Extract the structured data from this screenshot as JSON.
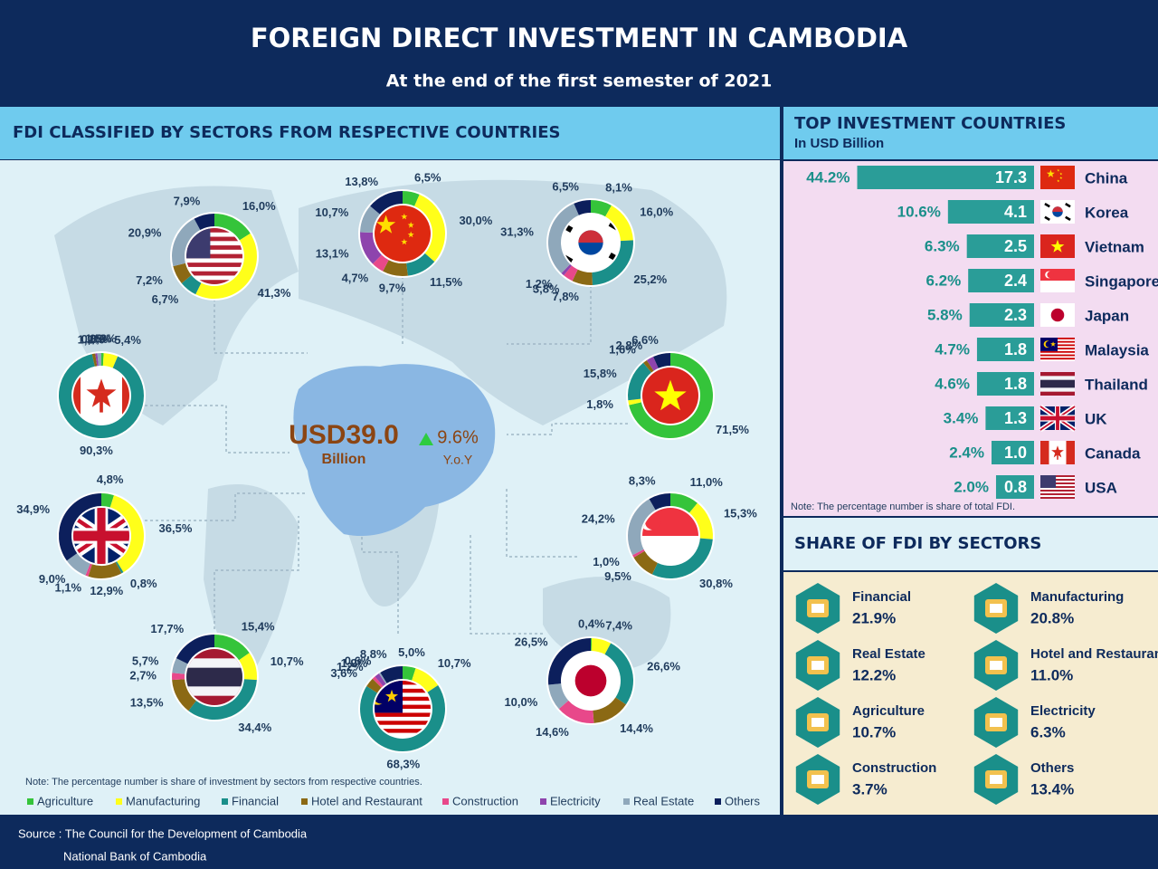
{
  "header": {
    "title": "FOREIGN DIRECT INVESTMENT IN CAMBODIA",
    "subtitle": "At the end of the first semester of 2021"
  },
  "map_panel": {
    "title": "FDI CLASSIFIED BY SECTORS FROM RESPECTIVE COUNTRIES",
    "total": "USD39.0",
    "total_unit": "Billion",
    "growth": "9.6%",
    "growth_unit": "Y.o.Y",
    "note": "Note: The percentage number is share of investment by sectors from respective countries."
  },
  "legend": [
    {
      "name": "Agriculture",
      "color": "#35c43a"
    },
    {
      "name": "Manufacturing",
      "color": "#ffff1a"
    },
    {
      "name": "Financial",
      "color": "#1a8f8a"
    },
    {
      "name": "Hotel and Restaurant",
      "color": "#8b6914"
    },
    {
      "name": "Construction",
      "color": "#e8488a"
    },
    {
      "name": "Electricity",
      "color": "#8e44ad"
    },
    {
      "name": "Real Estate",
      "color": "#8fa8bb"
    },
    {
      "name": "Others",
      "color": "#0c1f5c"
    }
  ],
  "chart_data": [
    {
      "type": "bar",
      "title": "TOP INVESTMENT COUNTRIES",
      "subtitle": "In USD Billion",
      "categories": [
        "China",
        "Korea",
        "Vietnam",
        "Singapore",
        "Japan",
        "Malaysia",
        "Thailand",
        "UK",
        "Canada",
        "USA"
      ],
      "values": [
        17.3,
        4.1,
        2.5,
        2.4,
        2.3,
        1.8,
        1.8,
        1.3,
        1.0,
        0.8
      ],
      "value_labels": [
        "17.3",
        "4.1",
        "2.5",
        "2.4",
        "2.3",
        "1.8",
        "1.8",
        "1.3",
        "1.0",
        "0.8"
      ],
      "share_labels": [
        "44.2%",
        "10.6%",
        "6.3%",
        "6.2%",
        "5.8%",
        "4.7%",
        "4.6%",
        "3.4%",
        "2.4%",
        "2.0%"
      ],
      "color": "#2a9d98",
      "note": "Note: The percentage number is share of total FDI."
    },
    {
      "type": "pie",
      "values": [
        16.0,
        41.3,
        6.7,
        7.2,
        null,
        null,
        20.9,
        7.9
      ],
      "value_labels": [
        "16,0%",
        "41,3%",
        "6,7%",
        "7,2%",
        null,
        null,
        "20,9%",
        "7,9%"
      ]
    },
    {
      "type": "pie",
      "values": [
        6.5,
        30.0,
        11.5,
        9.7,
        4.7,
        13.1,
        10.7,
        13.8
      ],
      "value_labels": [
        "6,5%",
        "30,0%",
        "11,5%",
        "9,7%",
        "4,7%",
        "13,1%",
        "10,7%",
        "13,8%"
      ]
    },
    {
      "type": "pie",
      "values": [
        8.1,
        16.0,
        25.2,
        7.8,
        3.8,
        1.2,
        31.3,
        6.5
      ],
      "value_labels": [
        "8,1%",
        "16,0%",
        "25,2%",
        "7,8%",
        "3,8%",
        "1,2%",
        "31,3%",
        "6,5%"
      ]
    },
    {
      "type": "pie",
      "values": [
        0.9,
        5.4,
        90.3,
        1.2,
        null,
        0.8,
        1.5,
        null
      ],
      "value_labels": [
        "0,9%",
        "5,4%",
        "90,3%",
        "1,2%",
        null,
        "0,8%",
        "1,5%",
        null
      ]
    },
    {
      "type": "pie",
      "values": [
        71.5,
        1.8,
        15.8,
        1.6,
        null,
        2.8,
        null,
        6.6
      ],
      "value_labels": [
        "71,5%",
        "1,8%",
        "15,8%",
        "1,6%",
        null,
        "2,8%",
        null,
        "6,6%"
      ]
    },
    {
      "type": "pie",
      "values": [
        4.8,
        36.5,
        0.8,
        12.9,
        1.1,
        null,
        9.0,
        34.9
      ],
      "value_labels": [
        "4,8%",
        "36,5%",
        "0,8%",
        "12,9%",
        "1,1%",
        null,
        "9,0%",
        "34,9%"
      ]
    },
    {
      "type": "pie",
      "values": [
        11.0,
        15.3,
        30.8,
        9.5,
        1.0,
        null,
        24.2,
        8.3
      ],
      "value_labels": [
        "11,0%",
        "15,3%",
        "30,8%",
        "9,5%",
        "1,0%",
        null,
        "24,2%",
        "8,3%"
      ]
    },
    {
      "type": "pie",
      "values": [
        15.4,
        10.7,
        34.4,
        13.5,
        2.7,
        null,
        5.7,
        17.7
      ],
      "value_labels": [
        "15,4%",
        "10,7%",
        "34,4%",
        "13,5%",
        "2,7%",
        null,
        "5,7%",
        "17,7%"
      ]
    },
    {
      "type": "pie",
      "values": [
        5.0,
        10.7,
        68.3,
        3.6,
        1.2,
        1.9,
        0.6,
        8.8
      ],
      "value_labels": [
        "5,0%",
        "10,7%",
        "68,3%",
        "3,6%",
        "1,2%",
        "1,9%",
        "0,6%",
        "8,8%"
      ]
    },
    {
      "type": "pie",
      "values": [
        0.4,
        7.4,
        26.6,
        14.4,
        14.6,
        null,
        10.0,
        26.5
      ],
      "value_labels": [
        "0,4%",
        "7,4%",
        "26,6%",
        "14,4%",
        "14,6%",
        null,
        "10,0%",
        "26,5%"
      ]
    }
  ],
  "sector_shares": {
    "title": "SHARE OF FDI BY SECTORS",
    "items": [
      {
        "name": "Financial",
        "value": "21.9%"
      },
      {
        "name": "Manufacturing",
        "value": "20.8%"
      },
      {
        "name": "Real Estate",
        "value": "12.2%"
      },
      {
        "name": "Hotel and Restaurant",
        "value": "11.0%"
      },
      {
        "name": "Agriculture",
        "value": "10.7%"
      },
      {
        "name": "Electricity",
        "value": "6.3%"
      },
      {
        "name": "Construction",
        "value": "3.7%"
      },
      {
        "name": "Others",
        "value": "13.4%"
      }
    ]
  },
  "source": [
    "Source : The Council for the Development of Cambodia",
    "National Bank of Cambodia"
  ]
}
